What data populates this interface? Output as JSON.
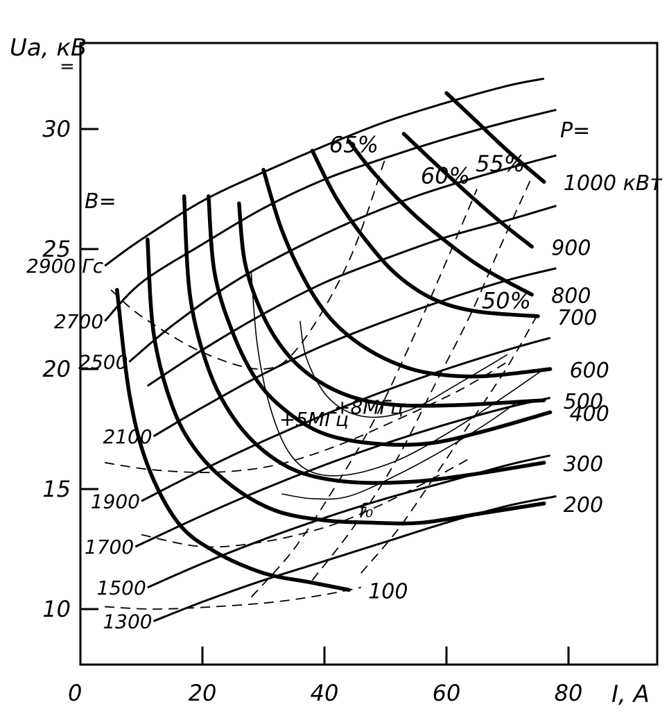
{
  "chart_data": {
    "type": "line",
    "xlabel": "I, A",
    "ylabel": "Uа, кВ",
    "ylabel_sub": "=",
    "xlim": [
      0,
      95
    ],
    "ylim": [
      7,
      34
    ],
    "x_ticks": [
      0,
      20,
      40,
      60,
      80
    ],
    "y_ticks": [
      10,
      15,
      20,
      25,
      30
    ],
    "x_tick_labels": [
      "0",
      "20",
      "40",
      "60",
      "80"
    ],
    "y_tick_labels": [
      "10",
      "15",
      "20",
      "25",
      "30"
    ],
    "power_header": "P=",
    "power_series": [
      {
        "label": "100",
        "points": [
          [
            6,
            23.3
          ],
          [
            8,
            19
          ],
          [
            11,
            16
          ],
          [
            16,
            13.6
          ],
          [
            22,
            12.4
          ],
          [
            30,
            11.5
          ],
          [
            38,
            11.1
          ],
          [
            44,
            10.8
          ]
        ]
      },
      {
        "label": "200",
        "points": [
          [
            11,
            25.4
          ],
          [
            12,
            21.5
          ],
          [
            15,
            18.5
          ],
          [
            19,
            16.6
          ],
          [
            25,
            15.1
          ],
          [
            32,
            14.1
          ],
          [
            40,
            13.7
          ],
          [
            48,
            13.6
          ],
          [
            56,
            13.6
          ],
          [
            66,
            14
          ],
          [
            76,
            14.4
          ]
        ]
      },
      {
        "label": "300",
        "points": [
          [
            17,
            27.2
          ],
          [
            18,
            23
          ],
          [
            21,
            20
          ],
          [
            25,
            18
          ],
          [
            30,
            16.6
          ],
          [
            36,
            15.7
          ],
          [
            44,
            15.3
          ],
          [
            54,
            15.3
          ],
          [
            64,
            15.6
          ],
          [
            76,
            16.1
          ]
        ]
      },
      {
        "label": "400",
        "points": [
          [
            21,
            27.2
          ],
          [
            22,
            24
          ],
          [
            25,
            21.5
          ],
          [
            29,
            19.5
          ],
          [
            34,
            18.2
          ],
          [
            40,
            17.3
          ],
          [
            48,
            16.9
          ],
          [
            57,
            16.9
          ],
          [
            66,
            17.4
          ],
          [
            77,
            18.2
          ]
        ]
      },
      {
        "label": "500",
        "points": [
          [
            26,
            26.9
          ],
          [
            27,
            24.4
          ],
          [
            30,
            22.2
          ],
          [
            34,
            20.6
          ],
          [
            39,
            19.5
          ],
          [
            45,
            18.8
          ],
          [
            52,
            18.5
          ],
          [
            62,
            18.5
          ],
          [
            76,
            18.7
          ]
        ]
      },
      {
        "label": "600",
        "points": [
          [
            30,
            28.3
          ],
          [
            33,
            25.8
          ],
          [
            37,
            23.6
          ],
          [
            41,
            22.1
          ],
          [
            46,
            21
          ],
          [
            52,
            20.2
          ],
          [
            58,
            19.8
          ],
          [
            66,
            19.7
          ],
          [
            77,
            20
          ]
        ]
      },
      {
        "label": "700",
        "points": [
          [
            38,
            29.1
          ],
          [
            42,
            27.1
          ],
          [
            47,
            25.3
          ],
          [
            52,
            23.9
          ],
          [
            58,
            22.9
          ],
          [
            65,
            22.4
          ],
          [
            75,
            22.2
          ]
        ]
      },
      {
        "label": "800",
        "points": [
          [
            44,
            29.5
          ],
          [
            48,
            28.2
          ],
          [
            54,
            26.6
          ],
          [
            60,
            25.3
          ],
          [
            66,
            24.2
          ],
          [
            74,
            23.1
          ]
        ]
      },
      {
        "label": "900",
        "points": [
          [
            53,
            29.8
          ],
          [
            58,
            28.6
          ],
          [
            64,
            27.2
          ],
          [
            69,
            26.1
          ],
          [
            74,
            25.1
          ]
        ]
      },
      {
        "label": "1000 кВт",
        "points": [
          [
            60,
            31.5
          ],
          [
            65,
            30.3
          ],
          [
            70,
            29.1
          ],
          [
            76,
            27.8
          ]
        ]
      }
    ],
    "b_header": "B=",
    "b_series": [
      {
        "label": "2900 Гс",
        "points": [
          [
            4,
            24.3
          ],
          [
            10,
            25.4
          ],
          [
            20,
            27
          ],
          [
            30,
            28.2
          ],
          [
            40,
            29.3
          ],
          [
            50,
            30.3
          ],
          [
            60,
            31.1
          ],
          [
            70,
            31.8
          ],
          [
            76,
            32.1
          ]
        ]
      },
      {
        "label": "2700",
        "points": [
          [
            4,
            22
          ],
          [
            10,
            23.6
          ],
          [
            20,
            25.2
          ],
          [
            30,
            26.7
          ],
          [
            40,
            27.9
          ],
          [
            50,
            28.8
          ],
          [
            60,
            29.6
          ],
          [
            70,
            30.3
          ],
          [
            78,
            30.8
          ]
        ]
      },
      {
        "label": "2500",
        "points": [
          [
            8,
            20.3
          ],
          [
            15,
            21.8
          ],
          [
            25,
            23.6
          ],
          [
            35,
            25
          ],
          [
            45,
            26.2
          ],
          [
            55,
            27.2
          ],
          [
            65,
            28
          ],
          [
            75,
            28.7
          ],
          [
            78,
            28.9
          ]
        ]
      },
      {
        "label": "",
        "points": [
          [
            11,
            19.3
          ],
          [
            20,
            20.8
          ],
          [
            30,
            22.3
          ],
          [
            40,
            23.6
          ],
          [
            50,
            24.6
          ],
          [
            60,
            25.5
          ],
          [
            70,
            26.2
          ],
          [
            78,
            26.8
          ]
        ]
      },
      {
        "label": "2100",
        "points": [
          [
            12,
            17.2
          ],
          [
            20,
            18.4
          ],
          [
            30,
            19.8
          ],
          [
            40,
            21
          ],
          [
            50,
            22
          ],
          [
            60,
            22.9
          ],
          [
            70,
            23.7
          ],
          [
            78,
            24.2
          ]
        ]
      },
      {
        "label": "1900",
        "points": [
          [
            10,
            14.5
          ],
          [
            20,
            15.8
          ],
          [
            30,
            17
          ],
          [
            40,
            18.1
          ],
          [
            50,
            19.1
          ],
          [
            60,
            20
          ],
          [
            70,
            20.8
          ],
          [
            77,
            21.3
          ]
        ]
      },
      {
        "label": "1700",
        "points": [
          [
            9,
            12.6
          ],
          [
            20,
            13.9
          ],
          [
            30,
            15
          ],
          [
            40,
            16
          ],
          [
            50,
            16.9
          ],
          [
            60,
            17.7
          ],
          [
            70,
            18.4
          ],
          [
            77,
            18.8
          ]
        ]
      },
      {
        "label": "1500",
        "points": [
          [
            11,
            10.9
          ],
          [
            20,
            11.9
          ],
          [
            30,
            12.9
          ],
          [
            40,
            13.8
          ],
          [
            50,
            14.6
          ],
          [
            60,
            15.3
          ],
          [
            70,
            16
          ],
          [
            77,
            16.4
          ]
        ]
      },
      {
        "label": "1300",
        "points": [
          [
            12,
            9.5
          ],
          [
            20,
            10.3
          ],
          [
            30,
            11.2
          ],
          [
            40,
            12
          ],
          [
            50,
            12.8
          ],
          [
            60,
            13.6
          ],
          [
            70,
            14.3
          ],
          [
            78,
            14.7
          ]
        ]
      }
    ],
    "efficiency_series": [
      {
        "label": "65%",
        "points": [
          [
            5,
            23.3
          ],
          [
            10,
            22.2
          ],
          [
            20,
            20.7
          ],
          [
            30,
            20
          ],
          [
            36,
            21
          ],
          [
            44,
            24.5
          ],
          [
            50,
            28.8
          ]
        ]
      },
      {
        "label": "60%",
        "points": [
          [
            28,
            10.5
          ],
          [
            35,
            12.5
          ],
          [
            42,
            15.2
          ],
          [
            48,
            17.8
          ],
          [
            54,
            21
          ],
          [
            60,
            24.5
          ],
          [
            65,
            27.5
          ]
        ]
      },
      {
        "label": "55%",
        "points": [
          [
            38,
            11.2
          ],
          [
            45,
            13.5
          ],
          [
            52,
            16.3
          ],
          [
            58,
            19.3
          ],
          [
            64,
            22.3
          ],
          [
            69,
            25.2
          ],
          [
            74,
            28
          ]
        ]
      },
      {
        "label": "50%",
        "points": [
          [
            46,
            11.5
          ],
          [
            52,
            13.3
          ],
          [
            58,
            15.5
          ],
          [
            64,
            17.8
          ],
          [
            70,
            20.1
          ],
          [
            75,
            22.3
          ]
        ]
      }
    ],
    "other_dashed": [
      {
        "points": [
          [
            4,
            10.1
          ],
          [
            12,
            10
          ],
          [
            22,
            10.1
          ],
          [
            32,
            10.3
          ],
          [
            40,
            10.6
          ],
          [
            46,
            10.9
          ]
        ]
      },
      {
        "points": [
          [
            10,
            13.1
          ],
          [
            20,
            12.6
          ],
          [
            30,
            12.8
          ],
          [
            40,
            13.4
          ],
          [
            48,
            14.2
          ],
          [
            56,
            15.2
          ],
          [
            64,
            16.3
          ]
        ]
      },
      {
        "points": [
          [
            4,
            16.1
          ],
          [
            12,
            15.8
          ],
          [
            22,
            15.7
          ],
          [
            32,
            16
          ],
          [
            42,
            16.8
          ],
          [
            52,
            17.9
          ],
          [
            62,
            19.1
          ],
          [
            70,
            20.3
          ]
        ]
      }
    ],
    "frequency_series": [
      {
        "label": "f₀",
        "points": [
          [
            33,
            14.8
          ],
          [
            38,
            14.6
          ],
          [
            44,
            14.7
          ],
          [
            52,
            15.6
          ],
          [
            60,
            16.7
          ],
          [
            67,
            17.8
          ],
          [
            72,
            18.7
          ]
        ]
      },
      {
        "label": "+5МГц",
        "points": [
          [
            28,
            24
          ],
          [
            29,
            21
          ],
          [
            31,
            18.5
          ],
          [
            34,
            16.6
          ],
          [
            38,
            15.7
          ],
          [
            44,
            15.6
          ],
          [
            52,
            16.2
          ],
          [
            60,
            17.3
          ],
          [
            68,
            18.6
          ],
          [
            76,
            20
          ]
        ]
      },
      {
        "label": "+8МГц",
        "points": [
          [
            36,
            22
          ],
          [
            37,
            20.5
          ],
          [
            40,
            19
          ],
          [
            44,
            18.2
          ],
          [
            49,
            18
          ],
          [
            55,
            18.4
          ],
          [
            62,
            19.4
          ],
          [
            70,
            20.6
          ]
        ]
      }
    ]
  }
}
